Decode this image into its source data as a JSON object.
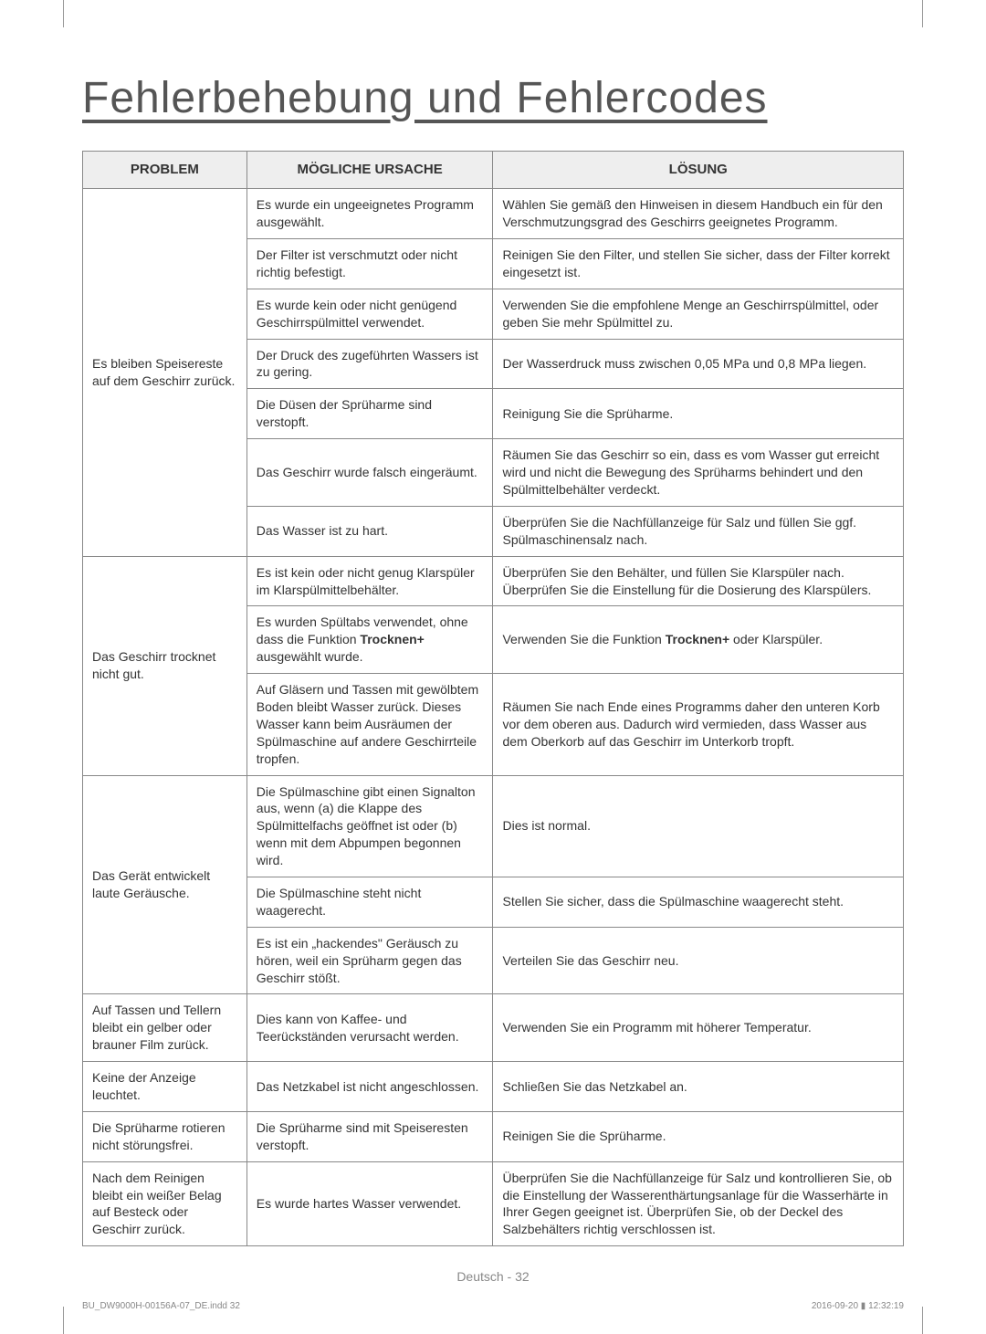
{
  "title": "Fehlerbehebung und Fehlercodes",
  "headers": {
    "problem": "PROBLEM",
    "cause": "MÖGLICHE URSACHE",
    "solution": "LÖSUNG"
  },
  "rows": [
    {
      "problem": "Es bleiben Speisereste auf dem Geschirr zurück.",
      "problem_rowspan": 7,
      "items": [
        {
          "cause": "Es wurde ein ungeeignetes Programm ausgewählt.",
          "solution": "Wählen Sie gemäß den Hinweisen in diesem Handbuch ein für den Verschmutzungsgrad des Geschirrs geeignetes Programm."
        },
        {
          "cause": "Der Filter ist verschmutzt oder nicht richtig befestigt.",
          "solution": "Reinigen Sie den Filter, und stellen Sie sicher, dass der Filter korrekt eingesetzt ist."
        },
        {
          "cause": "Es wurde kein oder nicht genügend Geschirrspülmittel verwendet.",
          "solution": "Verwenden Sie die empfohlene Menge an Geschirrspülmittel, oder geben Sie mehr Spülmittel zu."
        },
        {
          "cause": "Der Druck des zugeführten Wassers ist zu gering.",
          "solution": "Der Wasserdruck muss zwischen 0,05 MPa und 0,8 MPa liegen."
        },
        {
          "cause": "Die Düsen der Sprüharme sind verstopft.",
          "solution": "Reinigung Sie die Sprüharme."
        },
        {
          "cause": "Das Geschirr wurde falsch eingeräumt.",
          "solution": "Räumen Sie das Geschirr so ein, dass es vom Wasser gut erreicht wird und nicht die Bewegung des Sprüharms behindert und den Spülmittelbehälter verdeckt."
        },
        {
          "cause": "Das Wasser ist zu hart.",
          "solution": "Überprüfen Sie die Nachfüllanzeige für Salz und füllen Sie ggf. Spülmaschinensalz nach."
        }
      ]
    },
    {
      "problem": "Das Geschirr trocknet nicht gut.",
      "problem_rowspan": 3,
      "items": [
        {
          "cause": "Es ist kein oder nicht genug Klarspüler im Klarspülmittelbehälter.",
          "solution": "Überprüfen Sie den Behälter, und füllen Sie Klarspüler nach. Überprüfen Sie die Einstellung für die Dosierung des Klarspülers."
        },
        {
          "cause_html": "Es wurden Spültabs verwendet, ohne dass die Funktion <strong>Trocknen+</strong> ausgewählt wurde.",
          "solution_html": "Verwenden Sie die Funktion <strong>Trocknen+</strong> oder Klarspüler."
        },
        {
          "cause": "Auf Gläsern und Tassen mit gewölbtem Boden bleibt Wasser zurück. Dieses Wasser kann beim Ausräumen der Spülmaschine auf andere Geschirrteile tropfen.",
          "solution": "Räumen Sie nach Ende eines Programms daher den unteren Korb vor dem oberen aus. Dadurch wird vermieden, dass Wasser aus dem Oberkorb auf das Geschirr im Unterkorb tropft."
        }
      ]
    },
    {
      "problem": "Das Gerät entwickelt laute Geräusche.",
      "problem_rowspan": 3,
      "items": [
        {
          "cause": "Die Spülmaschine gibt einen Signalton aus, wenn (a) die Klappe des Spülmittelfachs geöffnet ist oder (b) wenn mit dem Abpumpen begonnen wird.",
          "solution": "Dies ist normal."
        },
        {
          "cause": "Die Spülmaschine steht nicht waagerecht.",
          "solution": "Stellen Sie sicher, dass die Spülmaschine waagerecht steht."
        },
        {
          "cause": "Es ist ein „hackendes\" Geräusch zu hören, weil ein Sprüharm gegen das Geschirr stößt.",
          "solution": "Verteilen Sie das Geschirr neu."
        }
      ]
    },
    {
      "problem": "Auf Tassen und Tellern bleibt ein gelber oder brauner Film zurück.",
      "problem_rowspan": 1,
      "items": [
        {
          "cause": "Dies kann von Kaffee- und Teerückständen verursacht werden.",
          "solution": "Verwenden Sie ein Programm mit höherer Temperatur."
        }
      ]
    },
    {
      "problem": "Keine der Anzeige leuchtet.",
      "problem_rowspan": 1,
      "items": [
        {
          "cause": "Das Netzkabel ist nicht angeschlossen.",
          "solution": "Schließen Sie das Netzkabel an."
        }
      ]
    },
    {
      "problem": "Die Sprüharme rotieren nicht störungsfrei.",
      "problem_rowspan": 1,
      "items": [
        {
          "cause": "Die Sprüharme sind mit Speiseresten verstopft.",
          "solution": "Reinigen Sie die Sprüharme."
        }
      ]
    },
    {
      "problem": "Nach dem Reinigen bleibt ein weißer Belag auf Besteck oder Geschirr zurück.",
      "problem_rowspan": 1,
      "items": [
        {
          "cause": "Es wurde hartes Wasser verwendet.",
          "solution": "Überprüfen Sie die Nachfüllanzeige für Salz und kontrollieren Sie, ob die Einstellung der Wasserenthärtungsanlage für die Wasserhärte in Ihrer Gegen geeignet ist. Überprüfen Sie, ob der Deckel des Salzbehälters richtig verschlossen ist."
        }
      ]
    }
  ],
  "footer_center": "Deutsch - 32",
  "footer_left": "BU_DW9000H-00156A-07_DE.indd   32",
  "footer_right": "2016-09-20   ▮ 12:32:19"
}
